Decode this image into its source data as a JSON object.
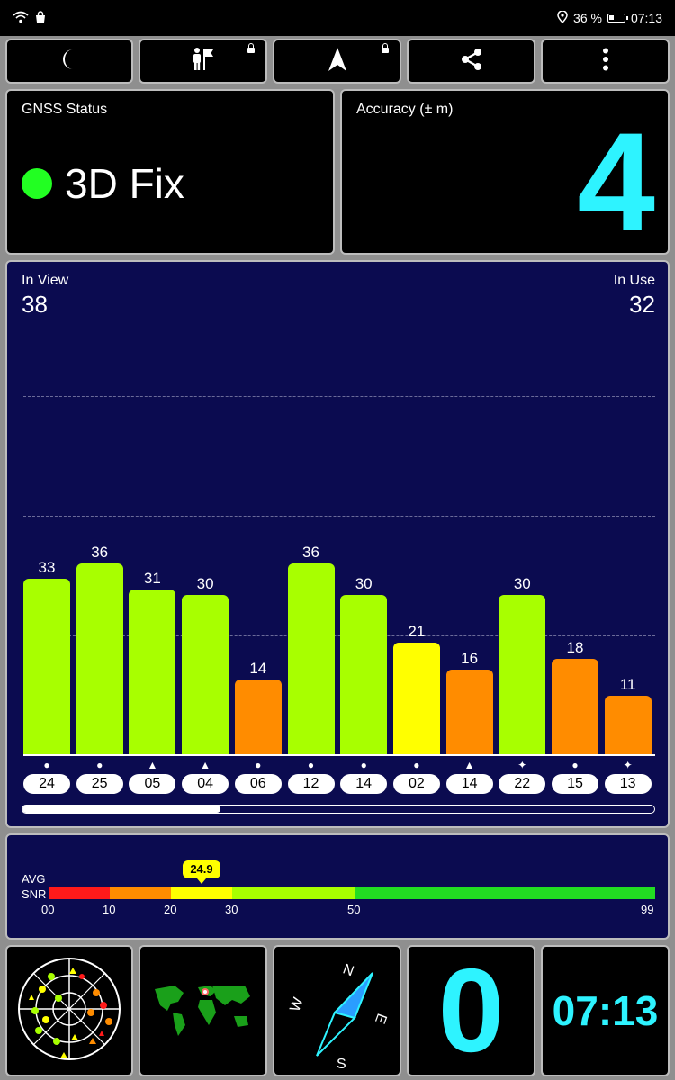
{
  "status_bar": {
    "battery": "36 %",
    "time": "07:13"
  },
  "toolbar": [
    {
      "name": "night-mode-button",
      "icon": "moon-icon",
      "locked": false
    },
    {
      "name": "person-flag-button",
      "icon": "person-flag-icon",
      "locked": true
    },
    {
      "name": "navigation-button",
      "icon": "navigation-arrow-icon",
      "locked": true
    },
    {
      "name": "share-button",
      "icon": "share-icon",
      "locked": false
    },
    {
      "name": "more-button",
      "icon": "more-vertical-icon",
      "locked": false
    }
  ],
  "gnss": {
    "label": "GNSS Status",
    "fix": "3D Fix",
    "fix_color": "#22ff22"
  },
  "accuracy": {
    "label": "Accuracy (± m)",
    "value": "4"
  },
  "satellites": {
    "in_view_label": "In View",
    "in_view": "38",
    "in_use_label": "In Use",
    "in_use": "32"
  },
  "chart_data": {
    "type": "bar",
    "categories": [
      "24",
      "25",
      "05",
      "04",
      "06",
      "12",
      "14",
      "02",
      "14",
      "22",
      "15",
      "13"
    ],
    "values": [
      33,
      36,
      31,
      30,
      14,
      36,
      30,
      21,
      16,
      30,
      18,
      11
    ],
    "constellation_markers": [
      "●",
      "●",
      "▲",
      "▲",
      "●",
      "●",
      "●",
      "●",
      "▲",
      "✦",
      "●",
      "✦"
    ],
    "ylim": [
      0,
      60
    ],
    "colors": {
      "strong": "#a8ff00",
      "medium": "#ffff00",
      "weak": "#ff8c00"
    },
    "title": "",
    "xlabel": "",
    "ylabel": ""
  },
  "snr": {
    "label_line1": "AVG",
    "label_line2": "SNR",
    "avg": "24.9",
    "avg_value": 24.9,
    "ticks": [
      "00",
      "10",
      "20",
      "30",
      "50",
      "99"
    ],
    "tick_values": [
      0,
      10,
      20,
      30,
      50,
      99
    ],
    "segments": [
      {
        "from": 0,
        "to": 10,
        "color": "#ff1a1a"
      },
      {
        "from": 10,
        "to": 20,
        "color": "#ff8c00"
      },
      {
        "from": 20,
        "to": 30,
        "color": "#ffff00"
      },
      {
        "from": 30,
        "to": 50,
        "color": "#a8ff00"
      },
      {
        "from": 50,
        "to": 99,
        "color": "#22dd22"
      }
    ]
  },
  "bottom": {
    "radar_icon": "sky-radar-icon",
    "map_icon": "world-map-icon",
    "compass": {
      "n": "N",
      "e": "E",
      "s": "S",
      "w": "W"
    },
    "speed": "0",
    "clock": "07:13"
  }
}
